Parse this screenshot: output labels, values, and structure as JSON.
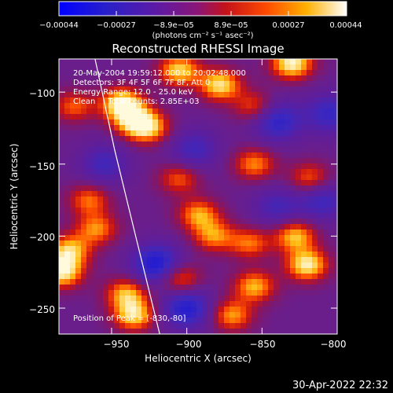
{
  "chart_data": {
    "type": "heatmap",
    "title": "Reconstructed RHESSI Image",
    "xlabel": "Heliocentric X (arcsec)",
    "ylabel": "Heliocentric Y (arcsec)",
    "xlim": [
      -985,
      -800
    ],
    "ylim": [
      -268,
      -77
    ],
    "x_ticks": [
      -950,
      -900,
      -850,
      -800
    ],
    "x_tick_labels": [
      "−950",
      "−900",
      "−850",
      "−800"
    ],
    "y_ticks": [
      -100,
      -150,
      -200,
      -250
    ],
    "y_tick_labels": [
      "−100",
      "−150",
      "−200",
      "−250"
    ],
    "colorbar": {
      "range": [
        -0.00044,
        0.00044
      ],
      "tick_labels": [
        "−0.00044",
        "−0.00027",
        "−8.9e−05",
        "8.9e−05",
        "0.00027",
        "0.00044"
      ],
      "units_label": "(photons cm⁻² s⁻¹ asec⁻²)",
      "colors": [
        "#0000ff",
        "#4a1c9c",
        "#7a1880",
        "#c4121a",
        "#ff5a00",
        "#ffd21a",
        "#ffffff"
      ]
    },
    "annotations": [
      "20-May-2004 19:59:12.000 to 20:02:48.000",
      "Detectors: 3F 4F 5F 6F 7F 8F, Att 0",
      "Energy Range: 12.0 - 25.0 keV",
      "Clean     Total counts: 2.85E+03"
    ],
    "peak_label": "Position of Peak = [-830,-80]",
    "limb_curve": [
      [
        -961,
        -77
      ],
      [
        -948,
        -140
      ],
      [
        -934,
        -200
      ],
      [
        -918,
        -268
      ]
    ],
    "hot_spots": [
      {
        "x": -943,
        "y": -108,
        "v": 1.0
      },
      {
        "x": -935,
        "y": -120,
        "v": 0.8
      },
      {
        "x": -905,
        "y": -85,
        "v": 0.85
      },
      {
        "x": -878,
        "y": -95,
        "v": 0.9
      },
      {
        "x": -830,
        "y": -80,
        "v": 1.0
      },
      {
        "x": -925,
        "y": -125,
        "v": 0.7
      },
      {
        "x": -855,
        "y": -150,
        "v": 0.65
      },
      {
        "x": -818,
        "y": -160,
        "v": 0.6
      },
      {
        "x": -975,
        "y": -110,
        "v": 0.55
      },
      {
        "x": -935,
        "y": -255,
        "v": 0.85
      },
      {
        "x": -940,
        "y": -240,
        "v": 0.75
      },
      {
        "x": -905,
        "y": -230,
        "v": 0.7
      },
      {
        "x": -820,
        "y": -220,
        "v": 0.95
      },
      {
        "x": -828,
        "y": -200,
        "v": 0.8
      },
      {
        "x": -855,
        "y": -235,
        "v": 0.75
      },
      {
        "x": -858,
        "y": -205,
        "v": 0.6
      },
      {
        "x": -870,
        "y": -255,
        "v": 0.7
      },
      {
        "x": -983,
        "y": -225,
        "v": 0.95
      },
      {
        "x": -978,
        "y": -210,
        "v": 0.8
      },
      {
        "x": -965,
        "y": -175,
        "v": 0.6
      },
      {
        "x": -960,
        "y": -195,
        "v": 0.65
      },
      {
        "x": -892,
        "y": -185,
        "v": 0.7
      },
      {
        "x": -882,
        "y": -200,
        "v": 0.65
      },
      {
        "x": -905,
        "y": -160,
        "v": 0.55
      },
      {
        "x": -855,
        "y": -110,
        "v": 0.55
      }
    ],
    "cold_spots": [
      {
        "x": -920,
        "y": -220,
        "v": 0.9
      },
      {
        "x": -900,
        "y": -250,
        "v": 0.8
      },
      {
        "x": -840,
        "y": -120,
        "v": 0.7
      },
      {
        "x": -805,
        "y": -115,
        "v": 0.6
      },
      {
        "x": -810,
        "y": -175,
        "v": 0.55
      },
      {
        "x": -895,
        "y": -140,
        "v": 0.5
      },
      {
        "x": -955,
        "y": -150,
        "v": 0.5
      },
      {
        "x": -840,
        "y": -180,
        "v": 0.45
      }
    ]
  },
  "footer": {
    "timestamp": "30-Apr-2022 22:32"
  }
}
